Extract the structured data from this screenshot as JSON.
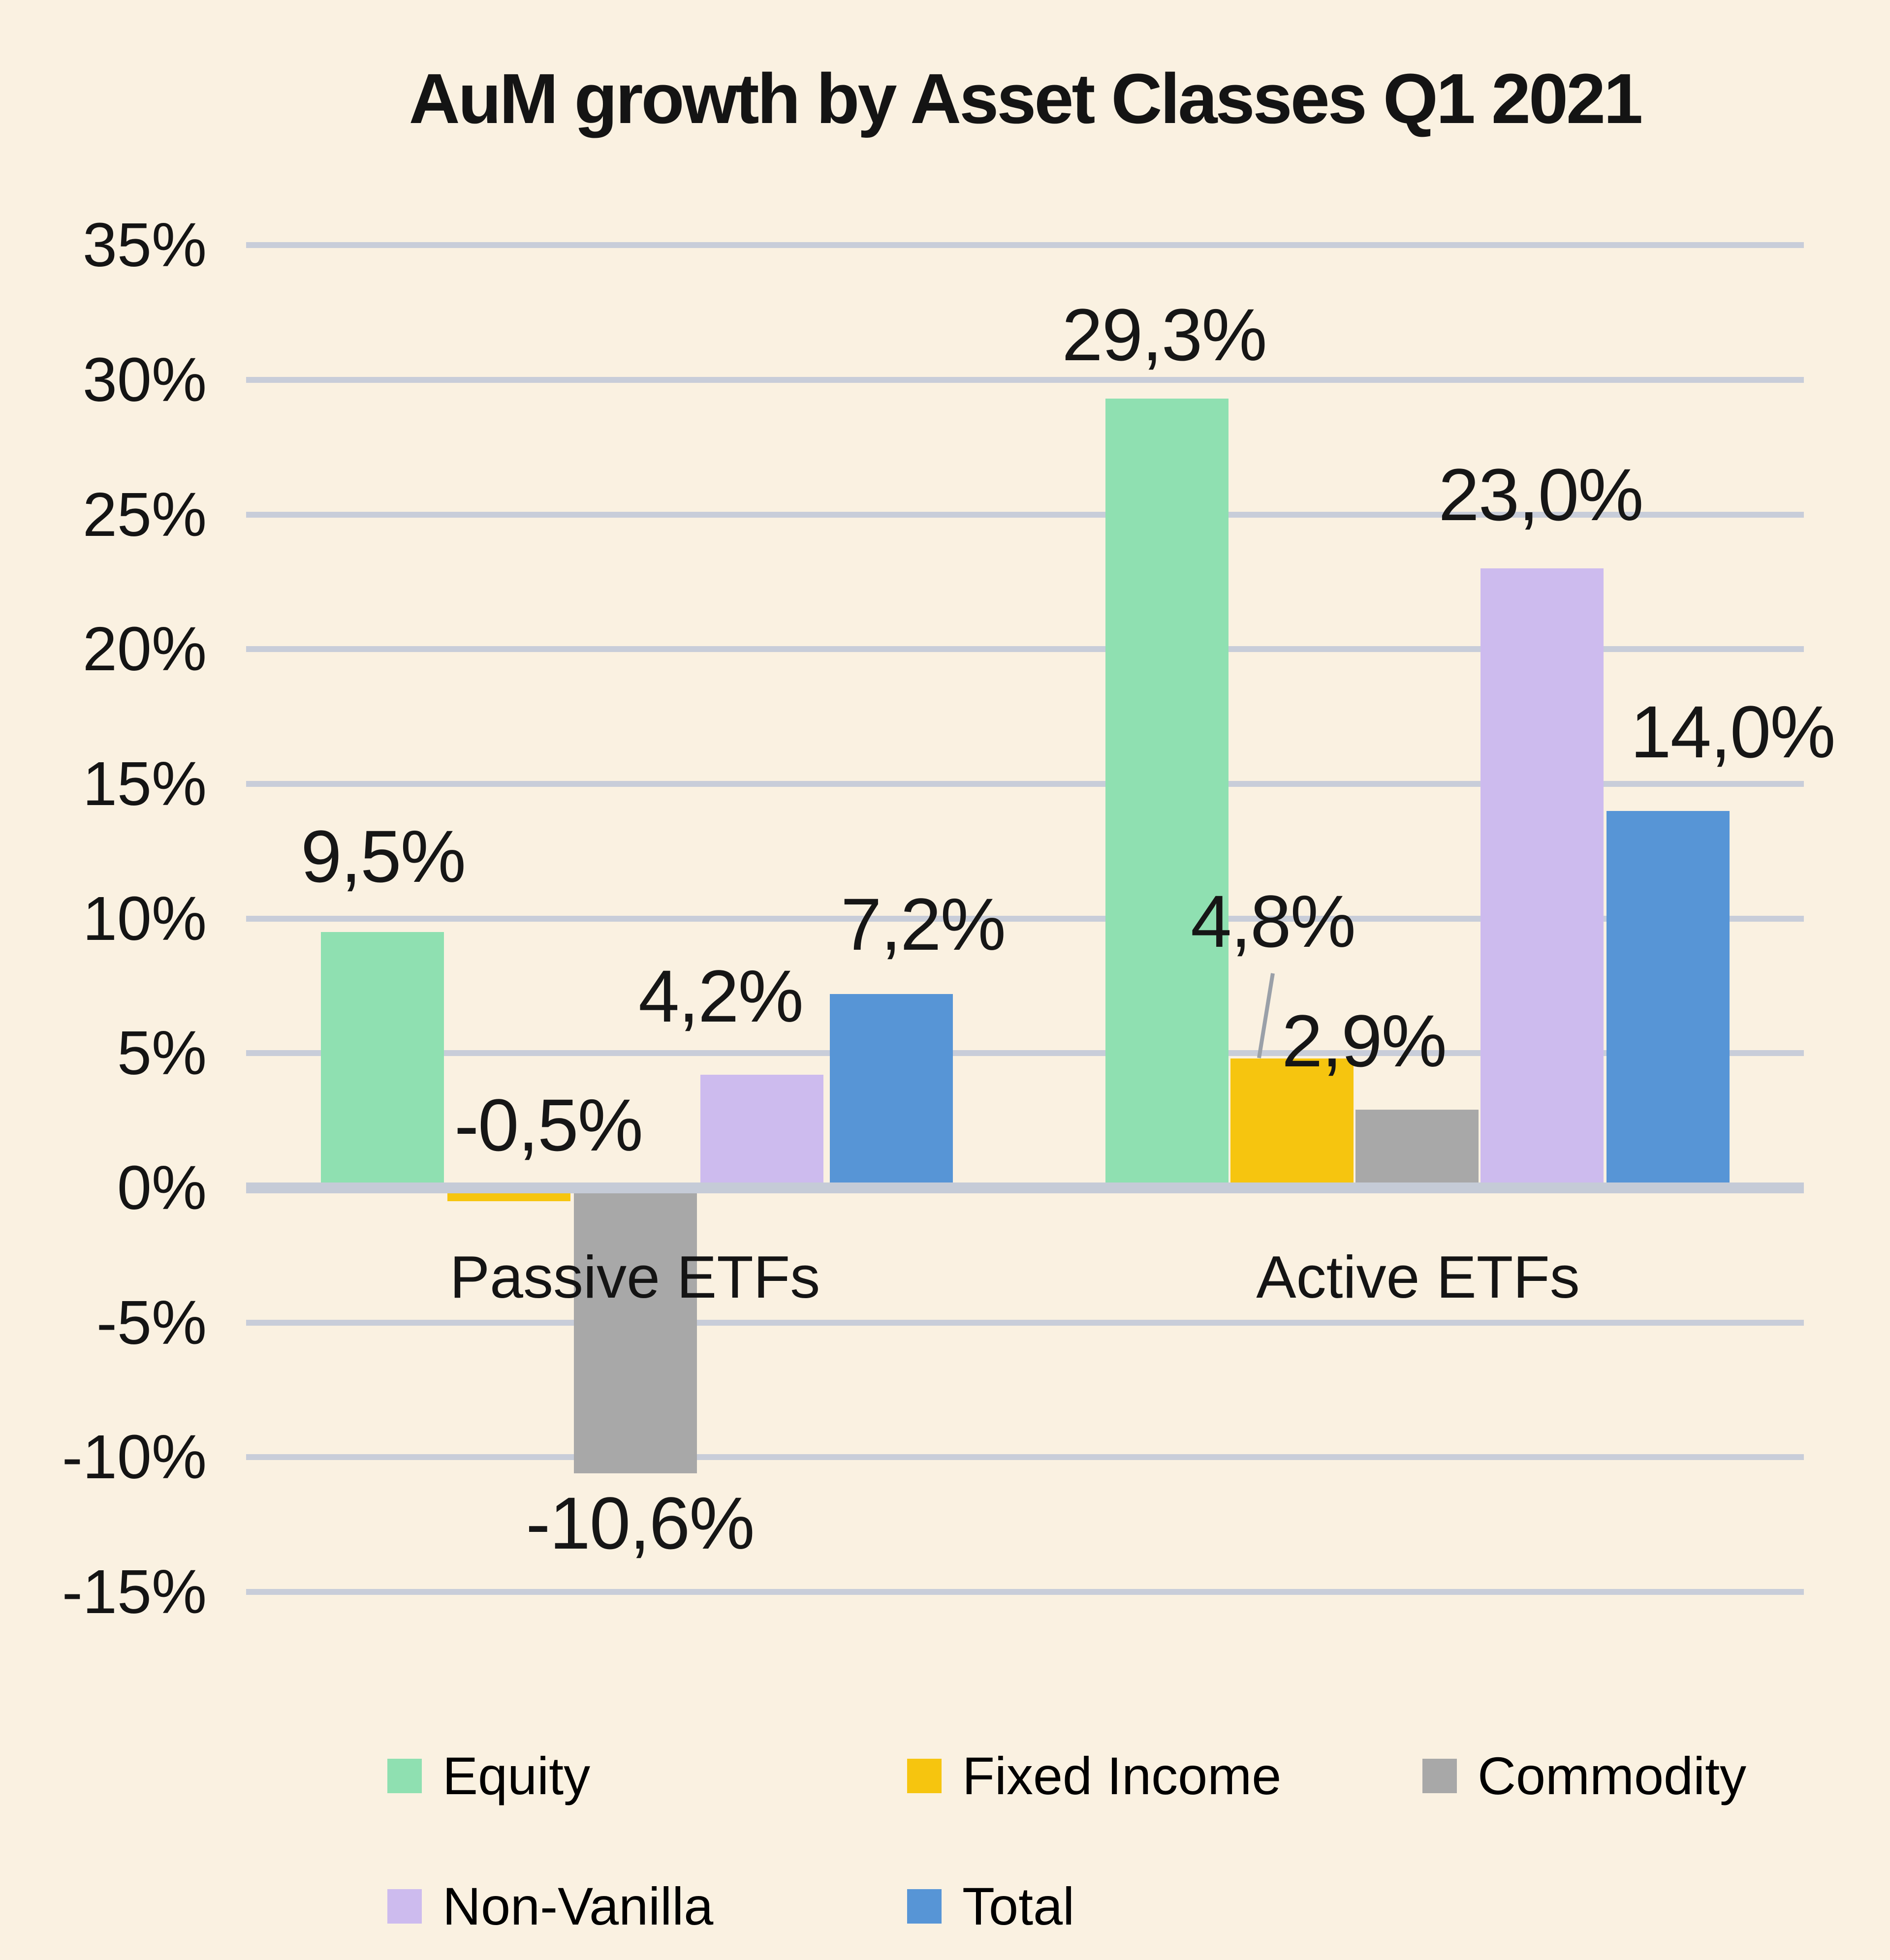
{
  "title": "AuM growth by Asset Classes Q1 2021",
  "chart_data": {
    "type": "bar",
    "title": "AuM growth by Asset Classes Q1 2021",
    "categories": [
      "Passive ETFs",
      "Active ETFs"
    ],
    "series": [
      {
        "name": "Equity",
        "color": "#8FE0B1",
        "values": [
          9.5,
          29.3
        ]
      },
      {
        "name": "Fixed Income",
        "color": "#F6C50F",
        "values": [
          -0.5,
          4.8
        ]
      },
      {
        "name": "Commodity",
        "color": "#A8A8A8",
        "values": [
          -10.6,
          2.9
        ]
      },
      {
        "name": "Non-Vanilla",
        "color": "#CDBBEE",
        "values": [
          4.2,
          23.0
        ]
      },
      {
        "name": "Total",
        "color": "#5795D6",
        "values": [
          7.2,
          14.0
        ]
      }
    ],
    "data_labels": [
      [
        "9,5%",
        "-0,5%",
        "-10,6%",
        "4,2%",
        "7,2%"
      ],
      [
        "29,3%",
        "4,8%",
        "2,9%",
        "23,0%",
        "14,0%"
      ]
    ],
    "y_ticks": [
      "35%",
      "30%",
      "25%",
      "20%",
      "15%",
      "10%",
      "5%",
      "0%",
      "-5%",
      "-10%",
      "-15%"
    ],
    "ylim": [
      -15,
      35
    ],
    "y_step": 5,
    "grid": true,
    "legend_position": "bottom",
    "legend_rows": [
      [
        "Equity",
        "Fixed Income",
        "Commodity"
      ],
      [
        "Non-Vanilla",
        "Total"
      ]
    ],
    "decimal_separator": ",",
    "colors": {
      "background": "#FAF1E1",
      "gridline": "#C8CDD9",
      "axis_line": "#C5CBD7",
      "text": "#141414",
      "leader_line": "#9AA0A8"
    }
  }
}
